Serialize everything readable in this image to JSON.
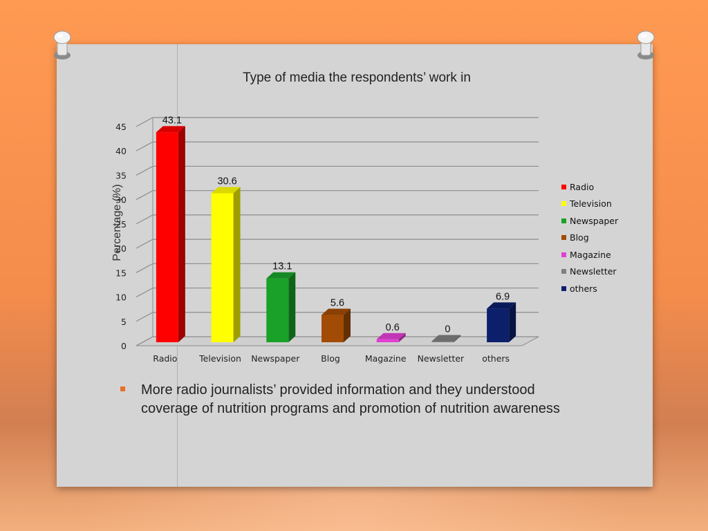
{
  "chart_data": {
    "type": "bar",
    "title": "Type of media the respondents’ work in",
    "xlabel": "",
    "ylabel": "Percentage (%)",
    "categories": [
      "Radio",
      "Television",
      "Newspaper",
      "Blog",
      "Magazine",
      "Newsletter",
      "others"
    ],
    "values": [
      43.1,
      30.6,
      13.1,
      5.6,
      0.6,
      0,
      6.9
    ],
    "data_labels": [
      "43.1",
      "30.6",
      "13.1",
      "5.6",
      "0.6",
      "0",
      "6.9"
    ],
    "colors": [
      "#ff0000",
      "#ffff00",
      "#1aa12a",
      "#a24b05",
      "#e23fd4",
      "#7f7f7f",
      "#0b1f6b"
    ],
    "ylim": [
      0,
      45
    ],
    "yticks": [
      0,
      5,
      10,
      15,
      20,
      25,
      30,
      35,
      40,
      45
    ],
    "grid": true,
    "legend_position": "right",
    "style": "3d-bar"
  },
  "bullet": {
    "text": "More radio journalists’ provided information and they understood coverage of nutrition programs and promotion of nutrition awareness",
    "color": "#e8702a"
  }
}
